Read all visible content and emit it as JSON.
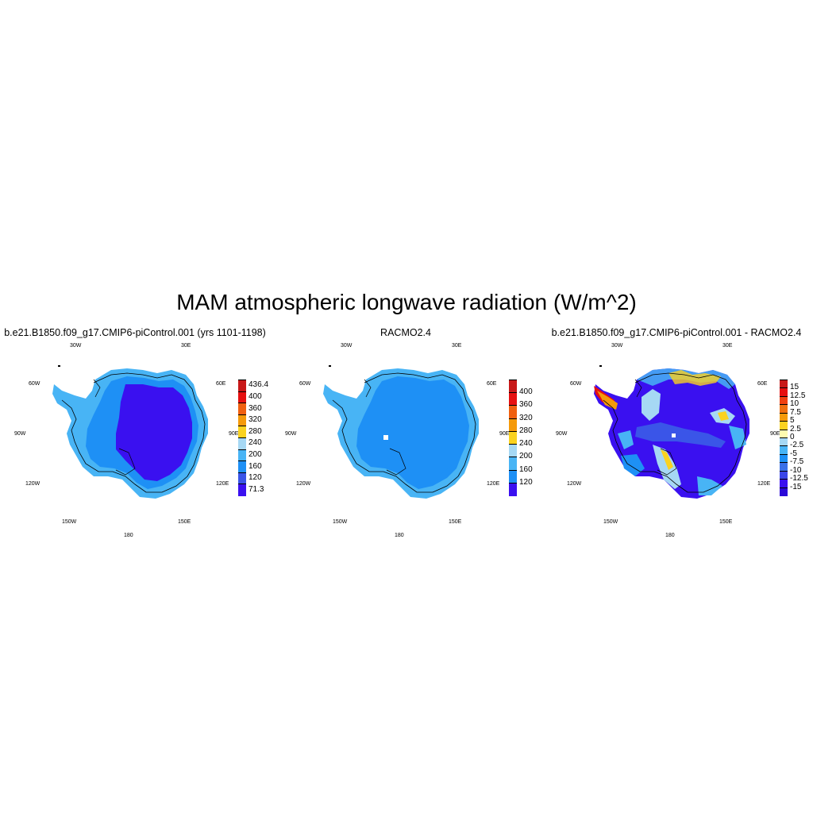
{
  "figure": {
    "title": "MAM atmospheric longwave radiation (W/m^2)"
  },
  "colors": {
    "deep_purple": "#3a10f0",
    "blue_dark": "#3a55e8",
    "blue_mid": "#1e90f5",
    "blue_light": "#48b4f5",
    "cyan_light": "#a6d8f4",
    "pale_yellow": "#fdfbb0",
    "yellow": "#fad220",
    "orange": "#f59a0a",
    "orange_red": "#f06010",
    "red": "#e61010",
    "dark_red": "#c81818"
  },
  "chart_data": [
    {
      "type": "heatmap",
      "title": "b.e21.B1850.f09_g17.CMIP6-piControl.001 (yrs 1101-1198)",
      "lon_labels": [
        "30W",
        "30E",
        "60W",
        "60E",
        "90W",
        "90E",
        "120W",
        "120E",
        "150W",
        "150E",
        "180"
      ],
      "colorbar": {
        "labels": [
          "436.4",
          "400",
          "360",
          "320",
          "280",
          "240",
          "200",
          "160",
          "120",
          "71.3"
        ],
        "colors": [
          "#c81818",
          "#e61010",
          "#f06010",
          "#f59a0a",
          "#fad220",
          "#a6d8f4",
          "#48b4f5",
          "#1e90f5",
          "#3a55e8",
          "#3a10f0"
        ]
      }
    },
    {
      "type": "heatmap",
      "title": "RACMO2.4",
      "lon_labels": [
        "30W",
        "30E",
        "60W",
        "60E",
        "90W",
        "90E",
        "120W",
        "120E",
        "150W",
        "150E",
        "180"
      ],
      "colorbar": {
        "labels": [
          "400",
          "360",
          "320",
          "280",
          "240",
          "200",
          "160",
          "120"
        ],
        "colors": [
          "#c81818",
          "#e61010",
          "#f06010",
          "#f59a0a",
          "#fad220",
          "#a6d8f4",
          "#48b4f5",
          "#1e90f5",
          "#3a10f0"
        ]
      }
    },
    {
      "type": "heatmap",
      "title": "b.e21.B1850.f09_g17.CMIP6-piControl.001 - RACMO2.4",
      "lon_labels": [
        "30W",
        "30E",
        "60W",
        "60E",
        "90W",
        "90E",
        "120W",
        "120E",
        "150W",
        "150E",
        "180"
      ],
      "colorbar": {
        "labels": [
          "15",
          "12.5",
          "10",
          "7.5",
          "5",
          "2.5",
          "0",
          "-2.5",
          "-5",
          "-7.5",
          "-10",
          "-12.5",
          "-15"
        ],
        "colors": [
          "#c81818",
          "#e61010",
          "#f04010",
          "#f07010",
          "#f59a0a",
          "#fad220",
          "#fdfbb0",
          "#a6d8f4",
          "#48b4f5",
          "#1e90f5",
          "#3a70e8",
          "#3a45e8",
          "#3a10f0",
          "#2a08d8"
        ]
      }
    }
  ]
}
